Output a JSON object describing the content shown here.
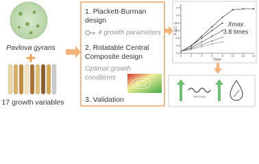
{
  "left": {
    "organism": "Pavlova gyrans",
    "variables": "17 growth variables"
  },
  "steps": [
    {
      "title_lines": [
        "1. Plackett-Burman",
        "design"
      ],
      "result_lines": [
        "4 growth parameters"
      ]
    },
    {
      "title_lines": [
        "2. Rotatable Central",
        "Composite design"
      ],
      "result_lines": [
        "Optimal growth",
        "conditions"
      ]
    },
    {
      "title_lines": [
        "3. Validation"
      ]
    }
  ],
  "chart_data": {
    "type": "line",
    "xlabel": "Days",
    "ylabel": "X (g L⁻¹)",
    "annotation": "Xmax",
    "annotation_value": "3.8 times",
    "x": [
      0,
      2,
      4,
      6,
      8,
      10,
      12,
      14
    ],
    "series": [
      {
        "color": "#333333",
        "values": [
          0.1,
          0.4,
          0.9,
          1.4,
          1.9,
          2.3,
          2.35,
          2.35
        ]
      },
      {
        "color": "#333333",
        "values": [
          0.1,
          0.4,
          0.8,
          1.2,
          1.6,
          null,
          null,
          null
        ]
      },
      {
        "color": "#555555",
        "values": [
          0.1,
          0.3,
          0.6,
          0.9,
          1.2,
          null,
          null,
          null
        ]
      },
      {
        "color": "#777777",
        "values": [
          0.1,
          0.25,
          0.45,
          0.65,
          0.85,
          null,
          null,
          null
        ]
      },
      {
        "color": "#999999",
        "values": [
          0.1,
          0.2,
          0.35,
          0.5,
          0.6,
          null,
          null,
          null
        ]
      }
    ],
    "xlim": [
      0,
      14
    ],
    "xticks": [
      0,
      2,
      4,
      6,
      8,
      10,
      12,
      14
    ],
    "ylim": [
      0,
      2.6
    ],
    "yticks": [
      {
        "value": 0,
        "label": "0.0"
      },
      {
        "value": 0.4,
        "label": "0.4"
      },
      {
        "value": 0.8,
        "label": "0.8"
      },
      {
        "value": 1.2,
        "label": "1.2"
      },
      {
        "value": 1.6,
        "label": "1.6"
      },
      {
        "value": 2,
        "label": "2.0"
      },
      {
        "value": 2.4,
        "label": "2.4"
      }
    ]
  },
  "outcome": {
    "icon_label": "PROTEIN"
  }
}
